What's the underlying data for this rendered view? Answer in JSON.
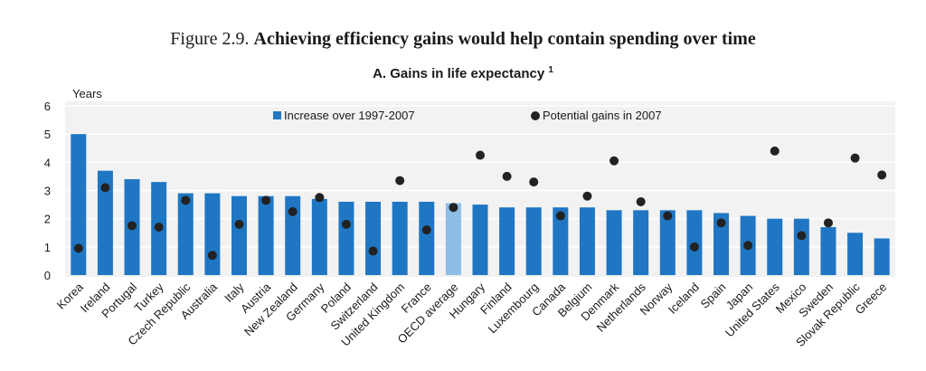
{
  "figure_title": {
    "prefix": "Figure 2.9.",
    "main": "Achieving efficiency gains would help contain spending over time"
  },
  "chart_data": {
    "type": "bar",
    "title": "A. Gains in life expectancy",
    "title_footnote": "1",
    "ylabel": "Years",
    "ylim": [
      0,
      6
    ],
    "yticks": [
      0,
      1,
      2,
      3,
      4,
      5,
      6
    ],
    "grid": true,
    "legend_position": "top",
    "categories": [
      "Korea",
      "Ireland",
      "Portugal",
      "Turkey",
      "Czech Republic",
      "Australia",
      "Italy",
      "Austria",
      "New Zealand",
      "Germany",
      "Poland",
      "Switzerland",
      "United Kingdom",
      "France",
      "OECD average",
      "Hungary",
      "Finland",
      "Luxembourg",
      "Canada",
      "Belgium",
      "Denmark",
      "Netherlands",
      "Norway",
      "Iceland",
      "Spain",
      "Japan",
      "United States",
      "Mexico",
      "Sweden",
      "Slovak Republic",
      "Greece"
    ],
    "series": [
      {
        "name": "Increase over 1997-2007",
        "kind": "bar",
        "color": "#1f77c4",
        "highlight": {
          "category": "OECD average",
          "color": "#8dbde6"
        },
        "values": [
          5.0,
          3.7,
          3.4,
          3.3,
          2.9,
          2.9,
          2.8,
          2.8,
          2.8,
          2.7,
          2.6,
          2.6,
          2.6,
          2.6,
          2.55,
          2.5,
          2.4,
          2.4,
          2.4,
          2.4,
          2.3,
          2.3,
          2.3,
          2.3,
          2.2,
          2.1,
          2.0,
          2.0,
          1.7,
          1.5,
          1.3
        ]
      },
      {
        "name": "Potential gains in 2007",
        "kind": "dot",
        "color": "#222222",
        "values": [
          0.95,
          3.1,
          1.75,
          1.7,
          2.65,
          0.7,
          1.8,
          2.65,
          2.25,
          2.75,
          1.8,
          0.85,
          3.35,
          1.6,
          2.4,
          4.25,
          3.5,
          3.3,
          2.1,
          2.8,
          4.05,
          2.6,
          2.1,
          1.0,
          1.85,
          1.05,
          4.4,
          1.4,
          1.85,
          4.15,
          3.55
        ]
      }
    ]
  }
}
